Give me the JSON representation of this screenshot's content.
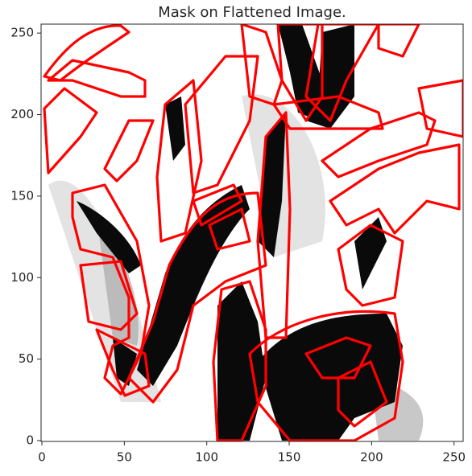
{
  "chart_data": {
    "type": "image",
    "title": "Mask on Flattened Image.",
    "xlim": [
      -0.5,
      255.5
    ],
    "ylim": [
      -0.5,
      255.5
    ],
    "xticks": [
      0,
      50,
      100,
      150,
      200,
      250
    ],
    "yticks": [
      0,
      50,
      100,
      150,
      200,
      250
    ],
    "contour_color": "#ff0000"
  }
}
